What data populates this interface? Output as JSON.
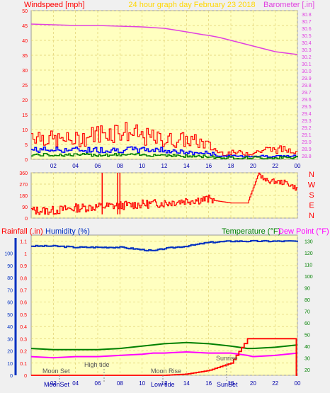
{
  "colors": {
    "plot_bg": "#ffffc0",
    "page_bg": "#f0f0f0",
    "grid": "#e0d070",
    "wind_gust": "#ff0000",
    "wind_avg": "#0000ff",
    "wind_low": "#008000",
    "barometer": "#e040e0",
    "direction": "#ff0000",
    "humidity": "#0030c0",
    "rainfall": "#ff0000",
    "temperature": "#008000",
    "dewpoint": "#ff00ff",
    "title": "#ffd700",
    "time_label": "#0000aa"
  },
  "time_ticks": [
    "02",
    "04",
    "06",
    "08",
    "10",
    "12",
    "14",
    "16",
    "18",
    "20",
    "22",
    "00"
  ],
  "astro_labels": {
    "moon_set_top": "Moon Set",
    "high_tide": "High tide",
    "moon_rise": "Moon Rise",
    "sunrise": "Sunrise",
    "moonset_bottom": "MoonSet",
    "low_tide": "Low tide",
    "sunset": "SunSet"
  },
  "chart_data": [
    {
      "type": "line",
      "title": "24 hour graph day  February 23 2018",
      "ylabel_left": "Windspeed [mph]",
      "ylabel_right": "Barometer [.in]",
      "left_ticks": [
        0,
        5,
        10,
        15,
        20,
        25,
        30,
        35,
        40,
        45,
        50
      ],
      "right_ticks": [
        28.8,
        28.9,
        29.0,
        29.1,
        29.2,
        29.3,
        29.4,
        29.5,
        29.6,
        29.7,
        29.8,
        29.9,
        30.0,
        30.1,
        30.2,
        30.3,
        30.4,
        30.5,
        30.6,
        30.7,
        30.8
      ],
      "ylim_left": [
        0,
        50
      ],
      "ylim_right": [
        28.75,
        30.85
      ],
      "x_hours": [
        0,
        2,
        4,
        6,
        8,
        10,
        12,
        14,
        15.5,
        16,
        17,
        18,
        19,
        20,
        21,
        22,
        23,
        24
      ],
      "series": [
        {
          "name": "Barometer",
          "axis": "right",
          "values": [
            30.66,
            30.65,
            30.64,
            30.64,
            30.63,
            30.62,
            30.6,
            30.55,
            30.51,
            30.5,
            30.47,
            30.43,
            30.39,
            30.35,
            30.31,
            30.27,
            30.25,
            30.23
          ]
        },
        {
          "name": "Wind gust",
          "axis": "left",
          "values": [
            8,
            6,
            6,
            8,
            9,
            7,
            6,
            6,
            5,
            4,
            2,
            2,
            2,
            2,
            3,
            3,
            3,
            3
          ]
        },
        {
          "name": "Wind average",
          "axis": "left",
          "values": [
            3,
            3,
            3,
            3,
            3,
            3,
            3,
            2,
            2,
            2,
            1,
            1,
            1,
            1,
            1,
            1,
            1,
            1
          ]
        }
      ]
    },
    {
      "type": "line",
      "ylabel": "Wind direction",
      "left_ticks": [
        0,
        90,
        180,
        270,
        360
      ],
      "right_labels": [
        "N",
        "W",
        "S",
        "E",
        "N"
      ],
      "ylim": [
        0,
        360
      ],
      "x_hours": [
        0,
        2,
        4,
        6,
        8,
        10,
        12,
        14,
        16,
        16.5,
        18,
        19.5,
        20.5,
        21,
        22,
        23,
        24
      ],
      "series": [
        {
          "name": "Direction",
          "values": [
            60,
            60,
            80,
            90,
            100,
            110,
            120,
            140,
            150,
            140,
            120,
            120,
            360,
            300,
            290,
            280,
            230
          ]
        }
      ]
    },
    {
      "type": "line",
      "ylabel_left_1": "Rainfall (.in)",
      "ylabel_left_2": "Humidity (%)",
      "ylabel_right_1": "Temperature (°F)",
      "ylabel_right_2": "Dew Point (°F)",
      "rain_ticks": [
        0,
        0.1,
        0.2,
        0.3,
        0.4,
        0.5,
        0.6,
        0.7,
        0.8,
        0.9,
        1,
        1.1
      ],
      "humidity_ticks": [
        0,
        10,
        20,
        30,
        40,
        50,
        60,
        70,
        80,
        90,
        100
      ],
      "temp_ticks": [
        20,
        30,
        40,
        50,
        60,
        70,
        80,
        90,
        100,
        110,
        120,
        130
      ],
      "ylim_rain": [
        0,
        1.15
      ],
      "ylim_temp": [
        15,
        135
      ],
      "x_hours": [
        0,
        2,
        4,
        6,
        8,
        10,
        11,
        12,
        14,
        16,
        18,
        19.5,
        20,
        22,
        24
      ],
      "series": [
        {
          "name": "Humidity",
          "axis": "rain",
          "values": [
            1.06,
            1.06,
            1.05,
            1.05,
            1.05,
            1.03,
            1.02,
            1.04,
            1.06,
            1.09,
            1.1,
            1.1,
            1.1,
            1.1,
            1.1
          ]
        },
        {
          "name": "Temperature",
          "axis": "temp",
          "values": [
            38,
            37,
            37,
            37,
            38,
            40,
            41,
            42,
            43,
            42,
            40,
            38,
            38,
            39,
            41
          ]
        },
        {
          "name": "Dew Point",
          "axis": "temp",
          "values": [
            31,
            30,
            31,
            31,
            32,
            33,
            34,
            34,
            35,
            34,
            34,
            32,
            31,
            32,
            34
          ]
        },
        {
          "name": "Rainfall",
          "axis": "rain",
          "values": [
            0,
            0,
            0,
            0,
            0,
            0,
            0,
            0,
            0.01,
            0.04,
            0.1,
            0.3,
            0.3,
            0.3,
            0
          ]
        }
      ]
    }
  ]
}
